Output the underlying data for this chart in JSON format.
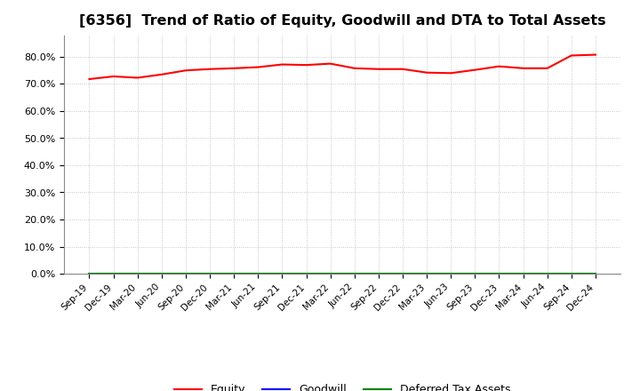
{
  "title": "[6356]  Trend of Ratio of Equity, Goodwill and DTA to Total Assets",
  "x_labels": [
    "Sep-19",
    "Dec-19",
    "Mar-20",
    "Jun-20",
    "Sep-20",
    "Dec-20",
    "Mar-21",
    "Jun-21",
    "Sep-21",
    "Dec-21",
    "Mar-22",
    "Jun-22",
    "Sep-22",
    "Dec-22",
    "Mar-23",
    "Jun-23",
    "Sep-23",
    "Dec-23",
    "Mar-24",
    "Jun-24",
    "Sep-24",
    "Dec-24"
  ],
  "equity": [
    71.8,
    72.8,
    72.3,
    73.5,
    75.0,
    75.5,
    75.8,
    76.2,
    77.2,
    77.0,
    77.5,
    75.8,
    75.5,
    75.5,
    74.2,
    74.0,
    75.2,
    76.5,
    75.8,
    75.8,
    80.5,
    80.8
  ],
  "goodwill": [
    0.0,
    0.0,
    0.0,
    0.0,
    0.0,
    0.0,
    0.0,
    0.0,
    0.0,
    0.0,
    0.0,
    0.0,
    0.0,
    0.0,
    0.0,
    0.0,
    0.0,
    0.0,
    0.0,
    0.0,
    0.0,
    0.0
  ],
  "dta": [
    0.0,
    0.0,
    0.0,
    0.0,
    0.0,
    0.0,
    0.0,
    0.0,
    0.0,
    0.0,
    0.0,
    0.0,
    0.0,
    0.0,
    0.0,
    0.0,
    0.0,
    0.0,
    0.0,
    0.0,
    0.0,
    0.0
  ],
  "equity_color": "#ff0000",
  "goodwill_color": "#0000ff",
  "dta_color": "#008000",
  "ylim": [
    0,
    88
  ],
  "yticks": [
    0.0,
    10.0,
    20.0,
    30.0,
    40.0,
    50.0,
    60.0,
    70.0,
    80.0
  ],
  "background_color": "#ffffff",
  "plot_bg_color": "#ffffff",
  "grid_color": "#bbbbbb",
  "title_fontsize": 11.5,
  "legend_labels": [
    "Equity",
    "Goodwill",
    "Deferred Tax Assets"
  ]
}
